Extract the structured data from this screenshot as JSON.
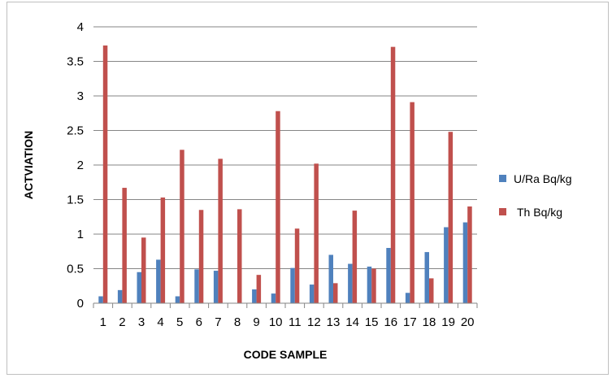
{
  "chart_data": {
    "type": "bar",
    "title": "",
    "xlabel": "CODE SAMPLE",
    "ylabel": "ACTVIATION",
    "ylim": [
      0,
      4
    ],
    "yticks": [
      0,
      0.5,
      1,
      1.5,
      2,
      2.5,
      3,
      3.5,
      4
    ],
    "ytick_labels": [
      "0",
      "0.5",
      "1",
      "1.5",
      "2",
      "2.5",
      "3",
      "3.5",
      "4"
    ],
    "grid": true,
    "legend_position": "right",
    "categories": [
      "1",
      "2",
      "3",
      "4",
      "5",
      "6",
      "7",
      "8",
      "9",
      "10",
      "11",
      "12",
      "13",
      "14",
      "15",
      "16",
      "17",
      "18",
      "19",
      "20"
    ],
    "series": [
      {
        "name": "U/Ra Bq/kg",
        "color": "#4f81bd",
        "values": [
          0.1,
          0.19,
          0.45,
          0.63,
          0.1,
          0.49,
          0.47,
          0.0,
          0.2,
          0.14,
          0.51,
          0.27,
          0.7,
          0.57,
          0.53,
          0.8,
          0.15,
          0.74,
          1.1,
          1.17
        ]
      },
      {
        "name": "Th Bq/kg",
        "color": "#c0504d",
        "values": [
          3.73,
          1.67,
          0.95,
          1.53,
          2.22,
          1.35,
          2.09,
          1.36,
          0.41,
          2.78,
          1.08,
          2.02,
          0.29,
          1.34,
          0.5,
          3.71,
          2.91,
          0.36,
          2.48,
          1.4
        ]
      }
    ]
  }
}
